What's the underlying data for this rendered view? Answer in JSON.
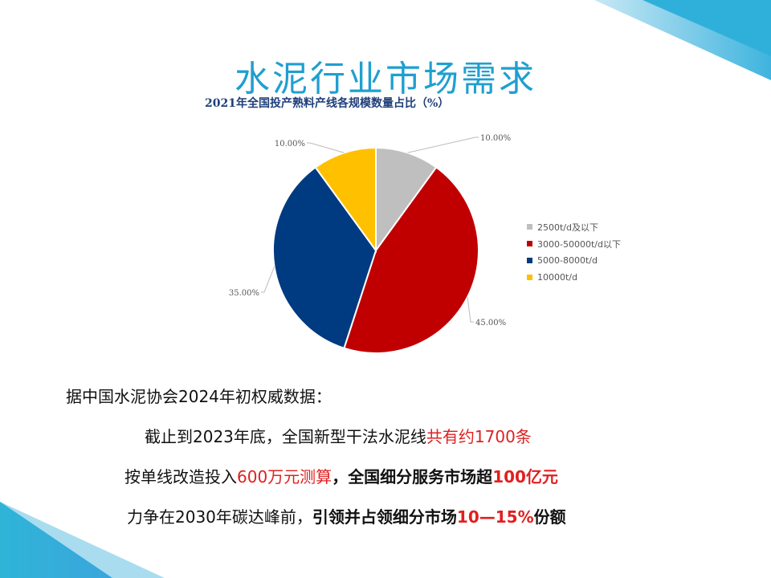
{
  "title": "水泥行业市场需求",
  "chart_data": {
    "type": "pie",
    "title": "2021年全国投产熟料产线各规模数量占比（%）",
    "categories": [
      "2500t/d及以下",
      "3000-50000t/d以下",
      "5000-8000t/d",
      "10000t/d"
    ],
    "values": [
      10,
      45,
      35,
      10
    ],
    "labels": [
      "10.00%",
      "45.00%",
      "35.00%",
      "10.00%"
    ],
    "colors": [
      "#bfbfbf",
      "#c00000",
      "#003a80",
      "#ffc000"
    ],
    "legend": "right"
  },
  "text": {
    "line1": "据中国水泥协会2024年初权威数据：",
    "line2a": "截止到2023年底，全国新型干法水泥线",
    "line2b": "共有约1700条",
    "line3a": "按单线改造投入",
    "line3b": "600万元测算",
    "line3c": "，",
    "line3d": "全国细分服务市场超",
    "line3e": "100亿元",
    "line4a": "力争在2030年碳达峰前，",
    "line4b": "引领并占领细分市场",
    "line4c": "10—15%",
    "line4d": "份额"
  },
  "colors": {
    "accent": "#1f9fd0",
    "highlight": "#e02020"
  }
}
